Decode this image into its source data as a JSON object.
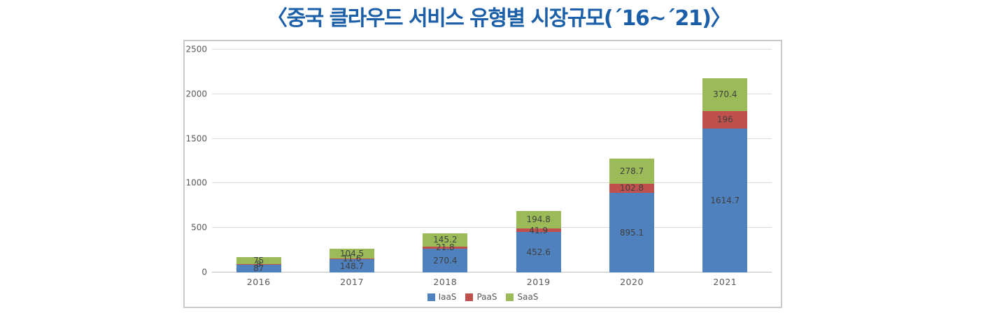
{
  "title": "〈중국 클라우드 서비스 유형별 시장규모(´16~´21)〉",
  "colors": {
    "title_blue": "#1C5FA9",
    "iaas_blue": "#4E81BD",
    "paas_red": "#C0504D",
    "saas_green": "#9BBB59",
    "axis_text": "#595959",
    "gridline": "#DCDCDC",
    "frame_border": "#C9C9C9"
  },
  "chart_data": {
    "type": "bar",
    "stacked": true,
    "title": "〈중국 클라우드 서비스 유형별 시장규모(´16~´21)〉",
    "categories": [
      "2016",
      "2017",
      "2018",
      "2019",
      "2020",
      "2021"
    ],
    "series": [
      {
        "name": "IaaS",
        "color": "#4E81BD",
        "values": [
          87,
          148.7,
          270.4,
          452.6,
          895.1,
          1614.7
        ]
      },
      {
        "name": "PaaS",
        "color": "#C0504D",
        "values": [
          8,
          11.6,
          21.8,
          41.9,
          102.8,
          196
        ]
      },
      {
        "name": "SaaS",
        "color": "#9BBB59",
        "values": [
          75,
          104.5,
          145.2,
          194.8,
          278.7,
          370.4
        ]
      }
    ],
    "xlabel": "",
    "ylabel": "",
    "ylim": [
      0,
      2500
    ],
    "y_ticks": [
      0,
      500,
      1000,
      1500,
      2000,
      2500
    ],
    "grid": true,
    "legend_position": "bottom",
    "data_labels": true
  }
}
